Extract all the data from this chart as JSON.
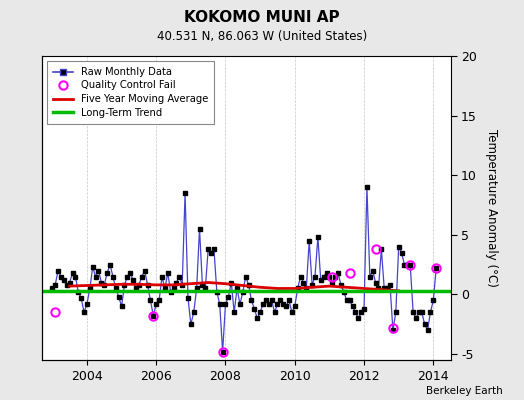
{
  "title": "KOKOMO MUNI AP",
  "subtitle": "40.531 N, 86.063 W (United States)",
  "ylabel": "Temperature Anomaly (°C)",
  "watermark": "Berkeley Earth",
  "ylim": [
    -5.5,
    20
  ],
  "yticks": [
    -5,
    0,
    5,
    10,
    15,
    20
  ],
  "xlim": [
    2002.7,
    2014.5
  ],
  "xticks": [
    2004,
    2006,
    2008,
    2010,
    2012,
    2014
  ],
  "bg_color": "#e8e8e8",
  "plot_bg_color": "#ffffff",
  "grid_color": "#c8c8c8",
  "raw_color": "#4444cc",
  "raw_marker_color": "#000000",
  "ma_color": "#dd0000",
  "trend_color": "#00bb00",
  "qc_color": "#ff00ff",
  "raw_data": [
    [
      2003.0,
      0.5
    ],
    [
      2003.083,
      0.8
    ],
    [
      2003.167,
      2.0
    ],
    [
      2003.25,
      1.5
    ],
    [
      2003.333,
      1.2
    ],
    [
      2003.417,
      0.8
    ],
    [
      2003.5,
      1.0
    ],
    [
      2003.583,
      1.8
    ],
    [
      2003.667,
      1.5
    ],
    [
      2003.75,
      0.2
    ],
    [
      2003.833,
      -0.3
    ],
    [
      2003.917,
      -1.5
    ],
    [
      2004.0,
      -0.8
    ],
    [
      2004.083,
      0.5
    ],
    [
      2004.167,
      2.3
    ],
    [
      2004.25,
      1.5
    ],
    [
      2004.333,
      2.0
    ],
    [
      2004.417,
      1.0
    ],
    [
      2004.5,
      0.8
    ],
    [
      2004.583,
      1.8
    ],
    [
      2004.667,
      2.5
    ],
    [
      2004.75,
      1.5
    ],
    [
      2004.833,
      0.5
    ],
    [
      2004.917,
      -0.2
    ],
    [
      2005.0,
      -1.0
    ],
    [
      2005.083,
      0.8
    ],
    [
      2005.167,
      1.5
    ],
    [
      2005.25,
      1.8
    ],
    [
      2005.333,
      1.2
    ],
    [
      2005.417,
      0.5
    ],
    [
      2005.5,
      0.8
    ],
    [
      2005.583,
      1.5
    ],
    [
      2005.667,
      2.0
    ],
    [
      2005.75,
      0.8
    ],
    [
      2005.833,
      -0.5
    ],
    [
      2005.917,
      -1.8
    ],
    [
      2006.0,
      -0.8
    ],
    [
      2006.083,
      -0.5
    ],
    [
      2006.167,
      1.5
    ],
    [
      2006.25,
      0.5
    ],
    [
      2006.333,
      1.8
    ],
    [
      2006.417,
      0.2
    ],
    [
      2006.5,
      0.5
    ],
    [
      2006.583,
      1.0
    ],
    [
      2006.667,
      1.5
    ],
    [
      2006.75,
      0.8
    ],
    [
      2006.833,
      8.5
    ],
    [
      2006.917,
      -0.3
    ],
    [
      2007.0,
      -2.5
    ],
    [
      2007.083,
      -1.5
    ],
    [
      2007.167,
      0.5
    ],
    [
      2007.25,
      5.5
    ],
    [
      2007.333,
      0.8
    ],
    [
      2007.417,
      0.5
    ],
    [
      2007.5,
      3.8
    ],
    [
      2007.583,
      3.5
    ],
    [
      2007.667,
      3.8
    ],
    [
      2007.75,
      0.2
    ],
    [
      2007.833,
      -0.8
    ],
    [
      2007.917,
      -4.8
    ],
    [
      2008.0,
      -0.8
    ],
    [
      2008.083,
      -0.2
    ],
    [
      2008.167,
      1.0
    ],
    [
      2008.25,
      -1.5
    ],
    [
      2008.333,
      0.5
    ],
    [
      2008.417,
      -0.8
    ],
    [
      2008.5,
      0.2
    ],
    [
      2008.583,
      1.5
    ],
    [
      2008.667,
      0.8
    ],
    [
      2008.75,
      -0.5
    ],
    [
      2008.833,
      -1.2
    ],
    [
      2008.917,
      -2.0
    ],
    [
      2009.0,
      -1.5
    ],
    [
      2009.083,
      -0.8
    ],
    [
      2009.167,
      -0.5
    ],
    [
      2009.25,
      -0.8
    ],
    [
      2009.333,
      -0.5
    ],
    [
      2009.417,
      -1.5
    ],
    [
      2009.5,
      -0.8
    ],
    [
      2009.583,
      -0.5
    ],
    [
      2009.667,
      -0.8
    ],
    [
      2009.75,
      -1.0
    ],
    [
      2009.833,
      -0.5
    ],
    [
      2009.917,
      -1.5
    ],
    [
      2010.0,
      -1.0
    ],
    [
      2010.083,
      0.5
    ],
    [
      2010.167,
      1.5
    ],
    [
      2010.25,
      1.0
    ],
    [
      2010.333,
      0.5
    ],
    [
      2010.417,
      4.5
    ],
    [
      2010.5,
      0.8
    ],
    [
      2010.583,
      1.5
    ],
    [
      2010.667,
      4.8
    ],
    [
      2010.75,
      1.2
    ],
    [
      2010.833,
      1.5
    ],
    [
      2010.917,
      1.8
    ],
    [
      2011.0,
      1.5
    ],
    [
      2011.083,
      1.0
    ],
    [
      2011.167,
      1.5
    ],
    [
      2011.25,
      1.8
    ],
    [
      2011.333,
      0.8
    ],
    [
      2011.417,
      0.2
    ],
    [
      2011.5,
      -0.5
    ],
    [
      2011.583,
      -0.5
    ],
    [
      2011.667,
      -1.0
    ],
    [
      2011.75,
      -1.5
    ],
    [
      2011.833,
      -2.0
    ],
    [
      2011.917,
      -1.5
    ],
    [
      2012.0,
      -1.2
    ],
    [
      2012.083,
      9.0
    ],
    [
      2012.167,
      1.5
    ],
    [
      2012.25,
      2.0
    ],
    [
      2012.333,
      1.0
    ],
    [
      2012.417,
      0.5
    ],
    [
      2012.5,
      3.8
    ],
    [
      2012.583,
      0.5
    ],
    [
      2012.667,
      0.5
    ],
    [
      2012.75,
      0.8
    ],
    [
      2012.833,
      -3.0
    ],
    [
      2012.917,
      -1.5
    ],
    [
      2013.0,
      4.0
    ],
    [
      2013.083,
      3.5
    ],
    [
      2013.167,
      2.5
    ],
    [
      2013.25,
      2.5
    ],
    [
      2013.333,
      2.5
    ],
    [
      2013.417,
      -1.5
    ],
    [
      2013.5,
      -2.0
    ],
    [
      2013.583,
      -1.5
    ],
    [
      2013.667,
      -1.5
    ],
    [
      2013.75,
      -2.5
    ],
    [
      2013.833,
      -3.0
    ],
    [
      2013.917,
      -1.5
    ],
    [
      2014.0,
      -0.5
    ],
    [
      2014.083,
      2.2
    ]
  ],
  "qc_fail_points": [
    [
      2003.083,
      -1.5
    ],
    [
      2005.917,
      -1.8
    ],
    [
      2007.917,
      -4.8
    ],
    [
      2011.083,
      1.5
    ],
    [
      2011.583,
      1.8
    ],
    [
      2012.333,
      3.8
    ],
    [
      2012.833,
      -2.8
    ],
    [
      2013.333,
      2.5
    ],
    [
      2014.083,
      2.2
    ]
  ],
  "ma_data": [
    [
      2003.5,
      0.7
    ],
    [
      2004.0,
      0.75
    ],
    [
      2004.5,
      0.8
    ],
    [
      2005.0,
      0.85
    ],
    [
      2005.5,
      0.85
    ],
    [
      2006.0,
      0.8
    ],
    [
      2006.5,
      0.8
    ],
    [
      2007.0,
      0.9
    ],
    [
      2007.5,
      1.0
    ],
    [
      2008.0,
      0.9
    ],
    [
      2008.5,
      0.75
    ],
    [
      2009.0,
      0.6
    ],
    [
      2009.5,
      0.5
    ],
    [
      2010.0,
      0.5
    ],
    [
      2010.5,
      0.6
    ],
    [
      2011.0,
      0.7
    ],
    [
      2011.5,
      0.6
    ],
    [
      2012.0,
      0.5
    ],
    [
      2012.5,
      0.4
    ],
    [
      2013.0,
      0.3
    ]
  ],
  "trend_x": [
    2002.7,
    2014.5
  ],
  "trend_y": [
    0.3,
    0.3
  ]
}
